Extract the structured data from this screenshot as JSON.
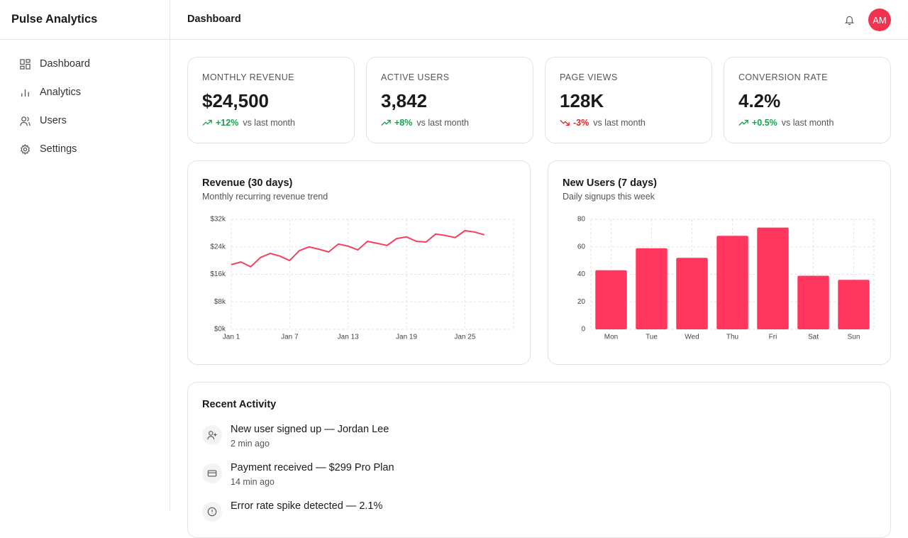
{
  "sidebar": {
    "brand": "Pulse Analytics",
    "nav": [
      "Dashboard",
      "Analytics",
      "Users",
      "Settings"
    ]
  },
  "header": {
    "title": "Dashboard",
    "avatar": "AM"
  },
  "kpis": [
    {
      "label": "MONTHLY REVENUE",
      "value": "$24,500",
      "change": "+12%",
      "trend": "up",
      "note": "vs last month"
    },
    {
      "label": "ACTIVE USERS",
      "value": "3,842",
      "change": "+8%",
      "trend": "up",
      "note": "vs last month"
    },
    {
      "label": "PAGE VIEWS",
      "value": "128K",
      "change": "-3%",
      "trend": "down",
      "note": "vs last month"
    },
    {
      "label": "CONVERSION RATE",
      "value": "4.2%",
      "change": "+0.5%",
      "trend": "up",
      "note": "vs last month"
    }
  ],
  "chart_data": [
    {
      "type": "line",
      "title": "Revenue (30 days)",
      "subtitle": "Monthly recurring revenue trend",
      "color": "#f43f5e",
      "grid": true,
      "categories": [
        "Jan 1",
        null,
        null,
        null,
        null,
        null,
        "Jan 7",
        null,
        null,
        null,
        null,
        null,
        "Jan 13",
        null,
        null,
        null,
        null,
        null,
        "Jan 19",
        null,
        null,
        null,
        null,
        null,
        "Jan 25",
        null,
        null,
        null,
        null,
        null
      ],
      "values": [
        18800,
        19600,
        18200,
        20900,
        22100,
        21300,
        20000,
        22900,
        24000,
        23300,
        22500,
        24800,
        24200,
        23100,
        25600,
        25000,
        24400,
        26400,
        26900,
        25600,
        25400,
        27700,
        27300,
        26700,
        28700,
        28300,
        27500,
        null,
        null,
        null
      ],
      "ylim": [
        0,
        32000
      ],
      "yticks": [
        {
          "value": 0,
          "label": "$0k"
        },
        {
          "value": 8000,
          "label": "$8k"
        },
        {
          "value": 16000,
          "label": "$16k"
        },
        {
          "value": 24000,
          "label": "$24k"
        },
        {
          "value": 32000,
          "label": "$32k"
        }
      ]
    },
    {
      "type": "bar",
      "title": "New Users (7 days)",
      "subtitle": "Daily signups this week",
      "color": "#ff375f",
      "grid": true,
      "categories": [
        "Mon",
        "Tue",
        "Wed",
        "Thu",
        "Fri",
        "Sat",
        "Sun"
      ],
      "values": [
        43,
        59,
        52,
        68,
        74,
        39,
        36
      ],
      "ylim": [
        0,
        80
      ],
      "yticks": [
        0,
        20,
        40,
        60,
        80
      ]
    }
  ],
  "activity": {
    "title": "Recent Activity",
    "items": [
      {
        "text": "New user signed up — Jordan Lee",
        "time": "2 min ago"
      },
      {
        "text": "Payment received — $299 Pro Plan",
        "time": "14 min ago"
      },
      {
        "text": "Error rate spike detected — 2.1%"
      }
    ]
  }
}
